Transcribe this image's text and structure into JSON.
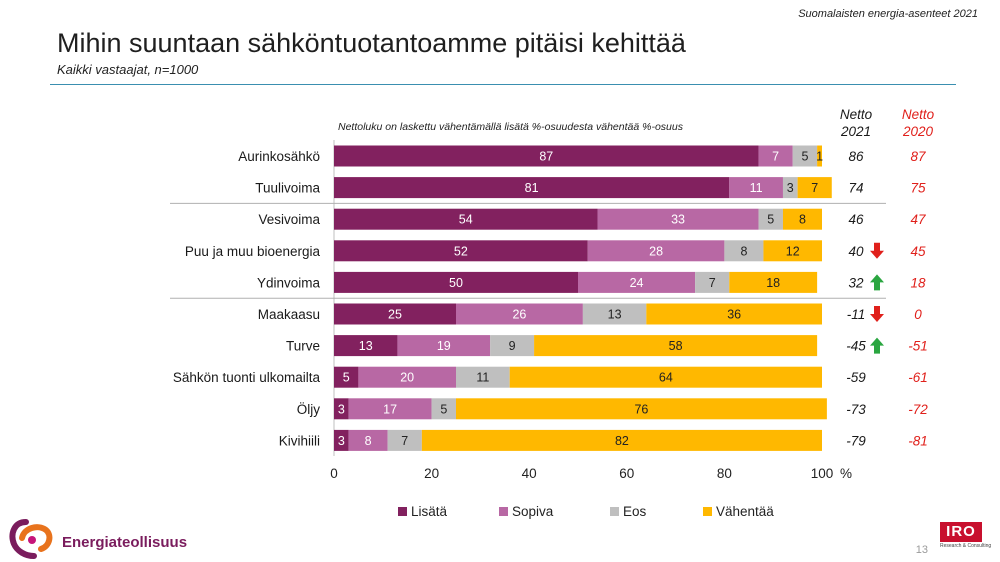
{
  "header": {
    "survey_name": "Suomalaisten energia-asenteet 2021",
    "title": "Mihin suuntaan sähköntuotantoamme pitäisi kehittää",
    "subtitle": "Kaikki vastaajat, n=1000"
  },
  "chart_data": {
    "type": "bar",
    "orientation": "horizontal",
    "stacked": true,
    "note": "Nettoluku on laskettu vähentämällä lisätä %-osuudesta vähentää %-osuus",
    "categories": [
      "Aurinkosähkö",
      "Tuulivoima",
      "Vesivoima",
      "Puu ja muu bioenergia",
      "Ydinvoima",
      "Maakaasu",
      "Turve",
      "Sähkön tuonti ulkomailta",
      "Öljy",
      "Kivihiili"
    ],
    "series": [
      {
        "name": "Lisätä",
        "color": "#82215f",
        "label_color": "#ffffff",
        "values": [
          87,
          81,
          54,
          52,
          50,
          25,
          13,
          5,
          3,
          3
        ]
      },
      {
        "name": "Sopiva",
        "color": "#b868a4",
        "label_color": "#ffffff",
        "values": [
          7,
          11,
          33,
          28,
          24,
          26,
          19,
          20,
          17,
          8
        ]
      },
      {
        "name": "Eos",
        "color": "#bfbfbf",
        "label_color": "#222222",
        "values": [
          5,
          3,
          5,
          8,
          7,
          13,
          9,
          11,
          5,
          7
        ]
      },
      {
        "name": "Vähentää",
        "color": "#ffb800",
        "label_color": "#222222",
        "values": [
          1,
          7,
          8,
          12,
          18,
          36,
          58,
          64,
          76,
          82
        ]
      }
    ],
    "xlim": [
      0,
      100
    ],
    "xticks": [
      0,
      20,
      40,
      60,
      80,
      100
    ],
    "x_unit": "%",
    "group_separators_after": [
      "Tuulivoima",
      "Ydinvoima"
    ],
    "legend_position": "bottom",
    "net_columns": [
      {
        "header": [
          "Netto",
          "2021"
        ],
        "color": "#1a1a1a",
        "values": [
          "86",
          "74",
          "46",
          "40",
          "32",
          "-11",
          "-45",
          "-59",
          "-73",
          "-79"
        ],
        "trend": [
          null,
          null,
          null,
          "down",
          "up",
          "down",
          "up",
          null,
          null,
          null
        ]
      },
      {
        "header": [
          "Netto",
          "2020"
        ],
        "color": "#e0201b",
        "values": [
          "87",
          "75",
          "47",
          "45",
          "18",
          "0",
          "-51",
          "-61",
          "-72",
          "-81"
        ]
      }
    ],
    "trend_colors": {
      "up": "#2aa640",
      "down": "#e0201b"
    }
  },
  "footer": {
    "brand_name": "Energiateollisuus",
    "partner_logo_text": "IRO",
    "partner_logo_subtext": "Research & Consulting",
    "page_number": "13"
  }
}
